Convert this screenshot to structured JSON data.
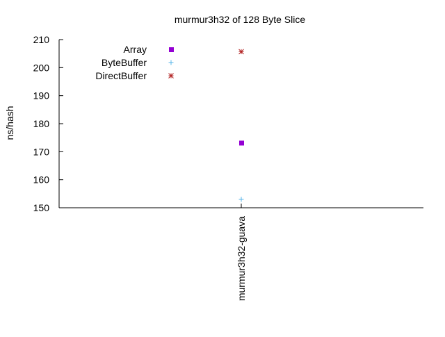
{
  "chart_data": {
    "type": "scatter",
    "title": "murmur3h32 of 128 Byte Slice",
    "xlabel": "",
    "ylabel": "ns/hash",
    "categories": [
      "murmur3h32-guava"
    ],
    "ylim": [
      150,
      210
    ],
    "yticks": [
      "150",
      "160",
      "170",
      "180",
      "190",
      "200",
      "210"
    ],
    "grid": false,
    "legend_position": "top-left",
    "series": [
      {
        "name": "Array",
        "marker": "square",
        "color": "#9400d3",
        "values": [
          173.2
        ]
      },
      {
        "name": "ByteBuffer",
        "marker": "plus",
        "color": "#56b4e9",
        "values": [
          153.0
        ]
      },
      {
        "name": "DirectBuffer",
        "marker": "asterisk",
        "color": "#b22222",
        "values": [
          205.7
        ]
      }
    ]
  }
}
